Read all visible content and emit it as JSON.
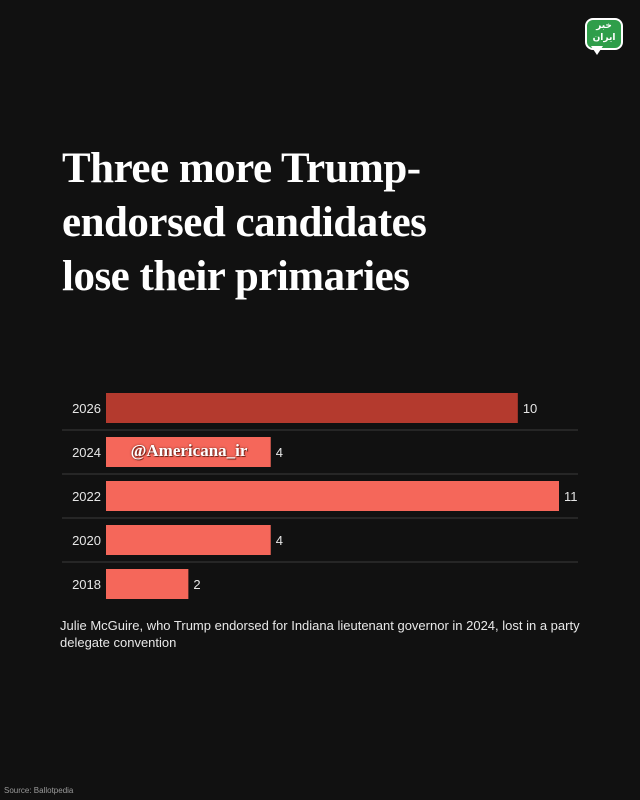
{
  "header": {
    "logo_text": "خبر\nایران",
    "title": "Three more Trump-endorsed candidates lose their primaries"
  },
  "watermark": "@Americana_ir",
  "note": "Julie McGuire, who Trump endorsed for Indiana lieutenant governor in 2024, lost in a party delegate convention",
  "source": "Source: Ballotpedia",
  "colors": {
    "highlight": "#b43a2e",
    "bar": "#f5675a",
    "divider": "#3a3a3a"
  },
  "chart_data": {
    "type": "bar",
    "orientation": "horizontal",
    "title": "Three more Trump-endorsed candidates lose their primaries",
    "categories": [
      "2026",
      "2024",
      "2022",
      "2020",
      "2018"
    ],
    "values": [
      10,
      4,
      11,
      4,
      2
    ],
    "highlight_category": "2026",
    "xlim": [
      0,
      11
    ],
    "grid": false,
    "data_labels": true
  }
}
